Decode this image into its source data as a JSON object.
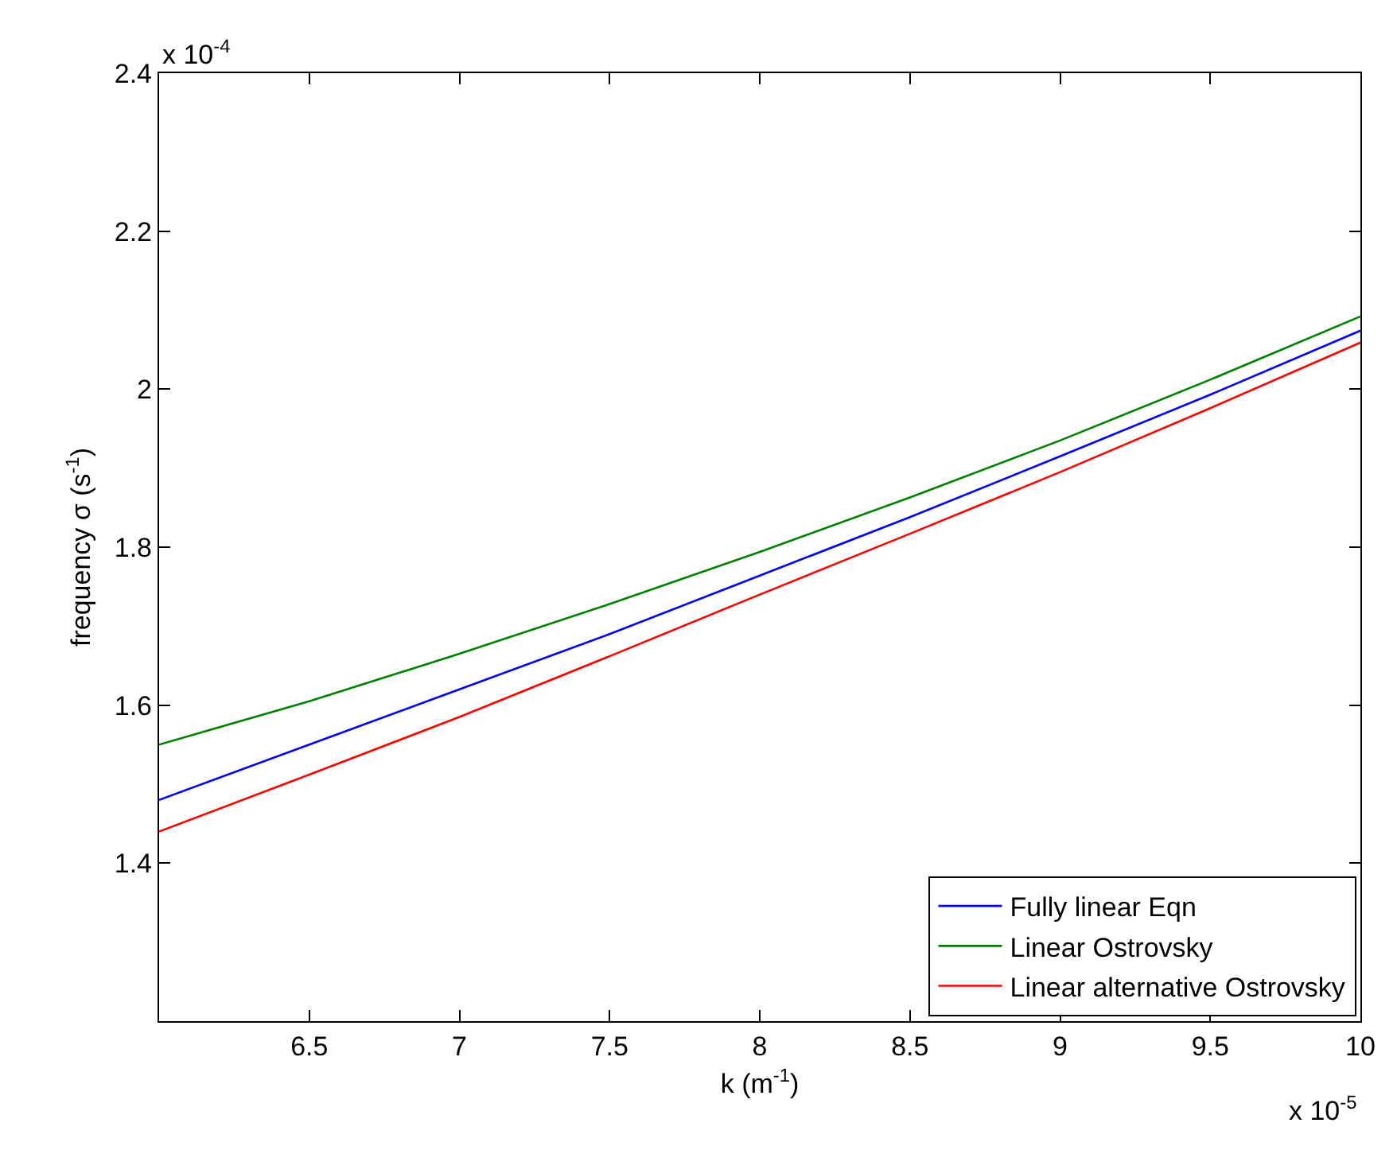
{
  "chart_data": {
    "type": "line",
    "xlabel": "k (m$^{-1}$)",
    "ylabel": "frequency σ (s$^{-1}$)",
    "x": [
      6,
      6.5,
      7,
      7.5,
      8,
      8.5,
      9,
      9.5,
      10
    ],
    "series": [
      {
        "name": "Fully linear Eqn",
        "color": "#0000ff",
        "values": [
          1.48,
          1.55,
          1.62,
          1.69,
          1.764,
          1.838,
          1.915,
          1.993,
          2.074
        ]
      },
      {
        "name": "Linear Ostrovsky",
        "color": "#008000",
        "values": [
          1.55,
          1.605,
          1.665,
          1.728,
          1.794,
          1.863,
          1.935,
          2.012,
          2.092
        ]
      },
      {
        "name": "Linear alternative Ostrovsky",
        "color": "#ff0000",
        "values": [
          1.44,
          1.512,
          1.585,
          1.662,
          1.74,
          1.817,
          1.895,
          1.976,
          2.059
        ]
      }
    ],
    "xlim": [
      6,
      10
    ],
    "xticks": [
      6.5,
      7,
      7.5,
      8,
      8.5,
      9,
      9.5,
      10
    ],
    "ylim": [
      1.2,
      2.4
    ],
    "yticks": [
      1.4,
      1.6,
      1.8,
      2,
      2.2,
      2.4
    ],
    "annotations": [
      "x 10$^{-4}$",
      "x 10$^{-5}$"
    ],
    "legend": "bottom right",
    "line_style": "solid",
    "marker": "none"
  }
}
